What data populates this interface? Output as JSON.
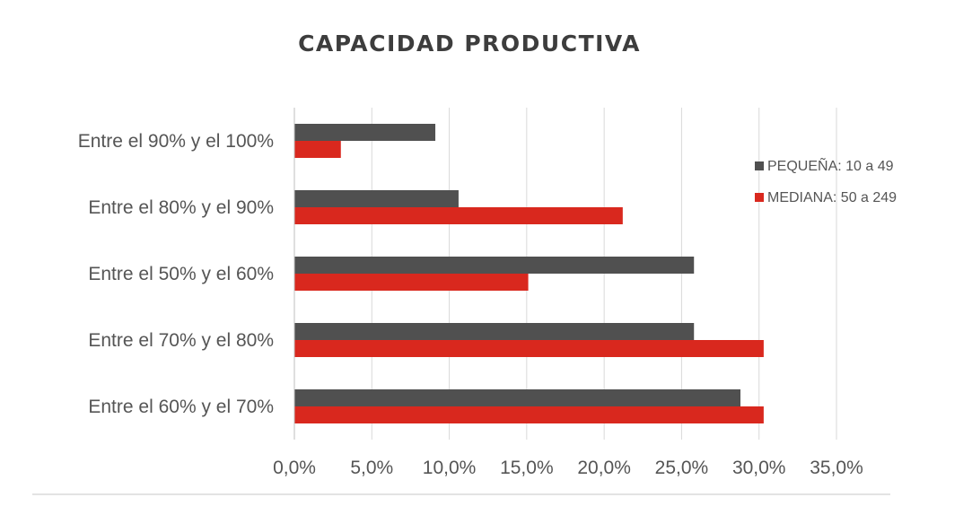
{
  "chart_data": {
    "type": "bar",
    "orientation": "horizontal",
    "title": "CAPACIDAD PRODUCTIVA",
    "categories": [
      "Entre el 90% y el 100%",
      "Entre el 80% y el 90%",
      "Entre el 50% y el 60%",
      "Entre el 70% y el 80%",
      "Entre el 60% y el 70%"
    ],
    "series": [
      {
        "name": "PEQUEÑA: 10 a 49",
        "color": "#505050",
        "values": [
          9.1,
          10.6,
          25.8,
          25.8,
          28.8
        ]
      },
      {
        "name": "MEDIANA: 50 a 249",
        "color": "#d9281e",
        "values": [
          3.0,
          21.2,
          15.1,
          30.3,
          30.3
        ]
      }
    ],
    "xlim": [
      0,
      35
    ],
    "x_ticks": [
      "0,0%",
      "5,0%",
      "10,0%",
      "15,0%",
      "20,0%",
      "25,0%",
      "30,0%",
      "35,0%"
    ],
    "xlabel": "",
    "ylabel": "",
    "grid": "vertical",
    "legend_position": "right"
  }
}
